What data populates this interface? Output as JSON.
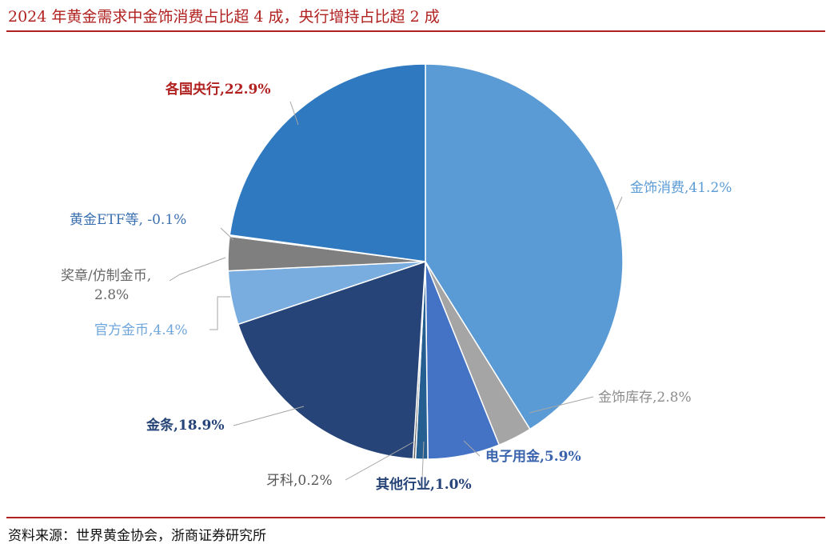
{
  "title": "2024 年黄金需求中金饰消费占比超 4 成，央行增持占比超 2 成",
  "source": "资料来源：世界黄金协会，浙商证券研究所",
  "chart_data": {
    "type": "pie",
    "title": "",
    "slices": [
      {
        "name": "金饰消费",
        "value": 41.2,
        "label": "金饰消费,41.2%",
        "color": "#5b9bd5",
        "label_color": "#5b9bd5"
      },
      {
        "name": "金饰库存",
        "value": 2.8,
        "label": "金饰库存,2.8%",
        "color": "#a5a5a5",
        "label_color": "#8c8c8c"
      },
      {
        "name": "电子用金",
        "value": 5.9,
        "label": "电子用金,5.9%",
        "color": "#4472c4",
        "label_color": "#3a63ad"
      },
      {
        "name": "其他行业",
        "value": 1.0,
        "label": "其他行业,1.0%",
        "color": "#255e91",
        "label_color": "#264478"
      },
      {
        "name": "牙科",
        "value": 0.2,
        "label": "牙科,0.2%",
        "color": "#636363",
        "label_color": "#555555"
      },
      {
        "name": "金条",
        "value": 18.9,
        "label": "金条,18.9%",
        "color": "#264478",
        "label_color": "#264478"
      },
      {
        "name": "官方金币",
        "value": 4.4,
        "label": "官方金币,4.4%",
        "color": "#7aaddf",
        "label_color": "#6fa6dc"
      },
      {
        "name": "奖章/仿制金币",
        "value": 2.8,
        "label_lines": [
          "奖章/仿制金币,",
          "2.8%"
        ],
        "color": "#7f7f7f",
        "label_color": "#666666"
      },
      {
        "name": "黄金ETF等",
        "value": -0.1,
        "label": "黄金ETF等, -0.1%",
        "color": "#9dc3e6",
        "label_color": "#3a6fb0"
      },
      {
        "name": "各国央行",
        "value": 22.9,
        "label": "各国央行,22.9%",
        "color": "#2e79c0",
        "label_color": "#b0211f"
      }
    ]
  }
}
